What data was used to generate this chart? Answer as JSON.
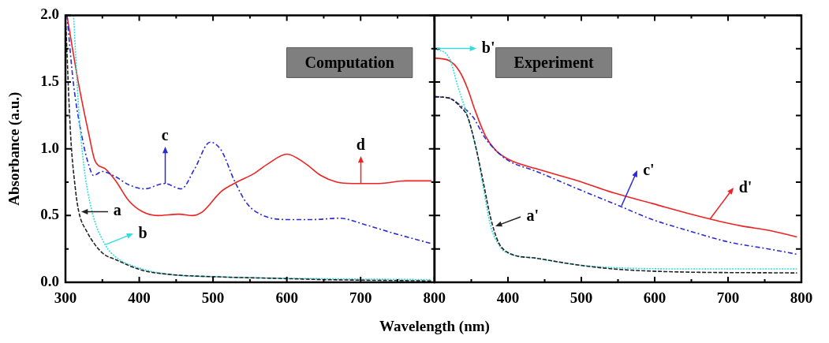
{
  "chart_data": [
    {
      "type": "line",
      "title": "Computation",
      "xlabel": "Wavelength (nm)",
      "ylabel": "Absorbance (a.u.)",
      "xlim": [
        300,
        800
      ],
      "ylim": [
        0,
        2
      ],
      "xticks": [
        300,
        {
          "value": 350,
          "label": null
        },
        400,
        {
          "value": 450,
          "label": null
        },
        500,
        {
          "value": 550,
          "label": null
        },
        600,
        {
          "value": 650,
          "label": null
        },
        700,
        {
          "value": 750,
          "label": null
        },
        800
      ],
      "yticks": [
        {
          "value": 0,
          "label": "0.0"
        },
        {
          "value": 0.25,
          "label": null
        },
        {
          "value": 0.5,
          "label": "0.5"
        },
        {
          "value": 0.75,
          "label": null
        },
        {
          "value": 1,
          "label": "1.0"
        },
        {
          "value": 1.25,
          "label": null
        },
        {
          "value": 1.5,
          "label": "1.5"
        },
        {
          "value": 1.75,
          "label": null
        },
        {
          "value": 2,
          "label": "2.0"
        }
      ],
      "grid": false,
      "legend": false,
      "marker": "none",
      "series": [
        {
          "color": "#222222",
          "line_style": "dashed",
          "x": [
            300,
            307,
            313,
            318,
            329,
            350,
            368,
            404,
            439,
            511,
            582,
            654,
            796
          ],
          "values": [
            2.0,
            1.1,
            0.72,
            0.53,
            0.38,
            0.22,
            0.17,
            0.09,
            0.06,
            0.04,
            0.03,
            0.02,
            0.01
          ]
        },
        {
          "color": "#33dddd",
          "line_style": "dotted",
          "x": [
            311,
            318,
            325,
            336,
            354,
            368,
            404,
            439,
            511,
            600,
            796
          ],
          "values": [
            2.0,
            1.29,
            0.87,
            0.53,
            0.28,
            0.19,
            0.1,
            0.06,
            0.04,
            0.03,
            0.02
          ]
        },
        {
          "color": "#2a2ad8",
          "line_style": "dashdot",
          "x": [
            302,
            311,
            322,
            332,
            338,
            350,
            368,
            386,
            407,
            434,
            457,
            475,
            496,
            511,
            529,
            546,
            568,
            600,
            636,
            671,
            707,
            743,
            796
          ],
          "values": [
            2.0,
            1.48,
            1.1,
            0.87,
            0.8,
            0.83,
            0.79,
            0.73,
            0.7,
            0.74,
            0.7,
            0.85,
            1.05,
            0.99,
            0.76,
            0.59,
            0.5,
            0.47,
            0.47,
            0.48,
            0.43,
            0.37,
            0.29
          ]
        },
        {
          "color": "#ee2222",
          "line_style": "solid",
          "x": [
            302,
            318,
            332,
            340,
            354,
            368,
            386,
            404,
            425,
            454,
            472,
            486,
            511,
            532,
            554,
            575,
            600,
            625,
            646,
            668,
            689,
            725,
            761,
            796
          ],
          "values": [
            2.0,
            1.48,
            1.1,
            0.91,
            0.85,
            0.76,
            0.61,
            0.53,
            0.5,
            0.51,
            0.5,
            0.53,
            0.68,
            0.75,
            0.81,
            0.89,
            0.96,
            0.89,
            0.8,
            0.75,
            0.74,
            0.74,
            0.76,
            0.76
          ]
        }
      ],
      "annotations": [
        {
          "text": "c",
          "x": 435,
          "y": 0.74
        },
        {
          "text": "d",
          "x": 700,
          "y": 0.74
        },
        {
          "text": "a",
          "x": 318,
          "y": 0.53
        },
        {
          "text": "b",
          "x": 354,
          "y": 0.28
        }
      ]
    },
    {
      "type": "line",
      "title": "Experiment",
      "xlim": [
        300,
        800
      ],
      "ylim": [
        0,
        2
      ],
      "tick_labels": "x",
      "xticks": [
        {
          "value": 300,
          "label": null
        },
        {
          "value": 350,
          "label": null
        },
        400,
        {
          "value": 450,
          "label": null
        },
        500,
        {
          "value": 550,
          "label": null
        },
        600,
        {
          "value": 650,
          "label": null
        },
        700,
        {
          "value": 750,
          "label": null
        },
        800
      ],
      "yticks": [
        0,
        0.25,
        0.5,
        0.75,
        1,
        1.25,
        1.5,
        1.75,
        2
      ],
      "grid": false,
      "legend": false,
      "marker": "none",
      "series": [
        {
          "color": "#222222",
          "line_style": "dashed",
          "x": [
            300,
            320,
            334,
            345,
            355,
            366,
            376,
            387,
            401,
            439,
            495,
            544,
            615,
            794
          ],
          "values": [
            1.39,
            1.38,
            1.32,
            1.24,
            1.04,
            0.76,
            0.49,
            0.3,
            0.22,
            0.18,
            0.13,
            0.1,
            0.08,
            0.07
          ]
        },
        {
          "color": "#33dddd",
          "line_style": "dotted",
          "x": [
            300,
            320,
            331,
            345,
            357,
            366,
            376,
            390,
            404,
            439,
            495,
            544,
            650,
            794
          ],
          "values": [
            1.75,
            1.68,
            1.48,
            1.24,
            0.99,
            0.72,
            0.43,
            0.26,
            0.21,
            0.18,
            0.13,
            0.11,
            0.1,
            0.1
          ]
        },
        {
          "color": "#2a2ad8",
          "line_style": "dashdot",
          "x": [
            300,
            320,
            334,
            352,
            369,
            383,
            401,
            439,
            495,
            544,
            597,
            650,
            702,
            755,
            794
          ],
          "values": [
            1.39,
            1.38,
            1.33,
            1.24,
            1.08,
            0.99,
            0.91,
            0.83,
            0.7,
            0.59,
            0.47,
            0.38,
            0.3,
            0.25,
            0.21
          ]
        },
        {
          "color": "#ee2222",
          "line_style": "solid",
          "x": [
            300,
            320,
            334,
            345,
            355,
            369,
            383,
            401,
            439,
            495,
            544,
            597,
            650,
            702,
            720,
            755,
            794
          ],
          "values": [
            1.68,
            1.66,
            1.58,
            1.45,
            1.29,
            1.1,
            0.99,
            0.92,
            0.85,
            0.76,
            0.67,
            0.59,
            0.51,
            0.44,
            0.42,
            0.39,
            0.34
          ]
        }
      ],
      "annotations": [
        {
          "text": "b'",
          "x": 303,
          "y": 1.75
        },
        {
          "text": "a'",
          "x": 380,
          "y": 0.42
        },
        {
          "text": "c'",
          "x": 555,
          "y": 0.57
        },
        {
          "text": "d'",
          "x": 675,
          "y": 0.47
        }
      ]
    }
  ]
}
